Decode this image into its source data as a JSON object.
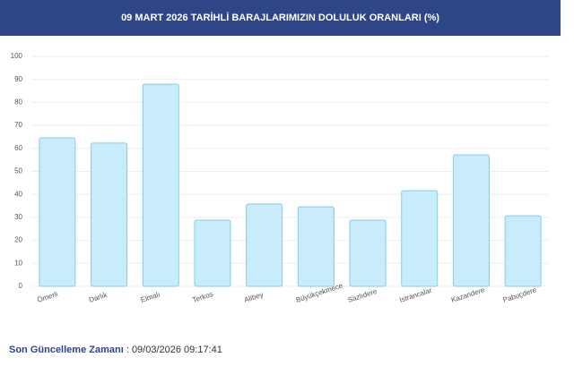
{
  "chart_data": {
    "type": "bar",
    "title": "09 MART 2026 TARİHLİ BARAJLARIMIZIN DOLULUK ORANLARI (%)",
    "categories": [
      "Ömerli",
      "Darlık",
      "Elmalı",
      "Terkos",
      "Alibey",
      "Büyükçekmece",
      "Sazlıdere",
      "Istrancalar",
      "Kazandere",
      "Pabuçdere"
    ],
    "values": [
      64.6,
      62.3,
      87.9,
      28.8,
      35.8,
      34.6,
      28.8,
      41.6,
      57.2,
      30.7
    ],
    "color": "#c9ecfb",
    "ylim": [
      0,
      100
    ],
    "yticks": [
      0,
      10,
      20,
      30,
      40,
      50,
      60,
      70,
      80,
      90,
      100
    ],
    "grid": true
  },
  "footer": {
    "update_label": "Son Güncelleme Zamanı",
    "update_value": ": 09/03/2026 09:17:41"
  }
}
